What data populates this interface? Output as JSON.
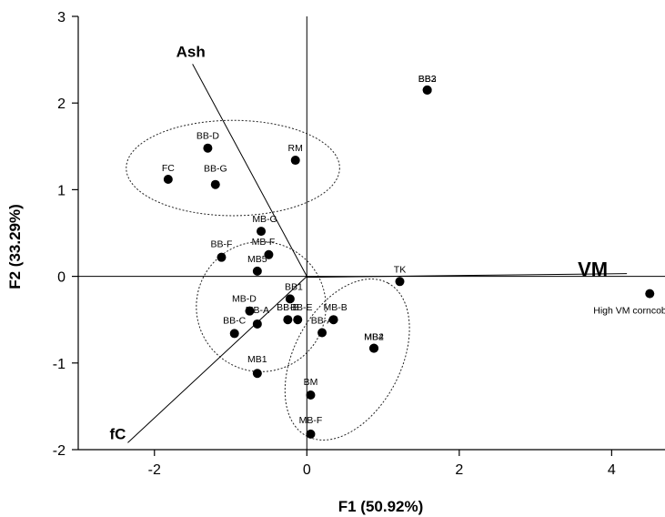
{
  "chart_data": {
    "type": "scatter",
    "xlabel": "F1 (50.92%)",
    "ylabel": "F2 (33.29%)",
    "xlim": [
      -3,
      4.7
    ],
    "ylim": [
      -2,
      3
    ],
    "xticks": [
      -2,
      0,
      2,
      4
    ],
    "yticks": [
      -2,
      -1,
      0,
      1,
      2,
      3
    ],
    "points": [
      {
        "label": "FC",
        "x": -1.82,
        "y": 1.12
      },
      {
        "label": "BB-D",
        "x": -1.3,
        "y": 1.48
      },
      {
        "label": "BB-G",
        "x": -1.2,
        "y": 1.06
      },
      {
        "label": "RM",
        "x": -0.15,
        "y": 1.34
      },
      {
        "label": "BB3",
        "x": 1.58,
        "y": 2.15
      },
      {
        "label": "BB2",
        "x": 1.58,
        "y": 2.15
      },
      {
        "label": "MB-G",
        "x": -0.6,
        "y": 0.52
      },
      {
        "label": "MB-F",
        "x": -0.5,
        "y": 0.25
      },
      {
        "label": "BB-F",
        "x": -1.12,
        "y": 0.22
      },
      {
        "label": "MB5",
        "x": -0.65,
        "y": 0.06
      },
      {
        "label": "TK",
        "x": 1.22,
        "y": -0.06
      },
      {
        "label": "BB1",
        "x": -0.22,
        "y": -0.26
      },
      {
        "label": "MB-D",
        "x": -0.75,
        "y": -0.4
      },
      {
        "label": "MB-A",
        "x": -0.65,
        "y": -0.55
      },
      {
        "label": "BB-C",
        "x": -0.95,
        "y": -0.66
      },
      {
        "label": "BB-B",
        "x": -0.25,
        "y": -0.5
      },
      {
        "label": "BB-E",
        "x": -0.12,
        "y": -0.5
      },
      {
        "label": "BB-A",
        "x": 0.2,
        "y": -0.65
      },
      {
        "label": "MB-B",
        "x": 0.35,
        "y": -0.5
      },
      {
        "label": "MB4",
        "x": 0.88,
        "y": -0.83
      },
      {
        "label": "MB2",
        "x": 0.88,
        "y": -0.83
      },
      {
        "label": "MB1",
        "x": -0.65,
        "y": -1.12
      },
      {
        "label": "BM",
        "x": 0.05,
        "y": -1.37
      },
      {
        "label": "MB-F",
        "x": 0.05,
        "y": -1.82
      },
      {
        "label": "High VM corncob",
        "x": 4.5,
        "y": -0.2
      }
    ],
    "vectors": [
      {
        "label": "Ash",
        "x": -1.5,
        "y": 2.45
      },
      {
        "label": "VM",
        "x": 4.2,
        "y": 0
      },
      {
        "label": "fC",
        "x": -2.35,
        "y": -1.92
      }
    ],
    "ellipses": [
      {
        "cx": -0.97,
        "cy": 1.25,
        "rx": 1.4,
        "ry": 0.55
      },
      {
        "cx": -0.6,
        "cy": -0.35,
        "rx": 0.85,
        "ry": 0.75
      },
      {
        "cx": 0.53,
        "cy": -0.96,
        "rx": 0.7,
        "ry": 1.0
      }
    ],
    "grid": false,
    "legend": "none"
  }
}
